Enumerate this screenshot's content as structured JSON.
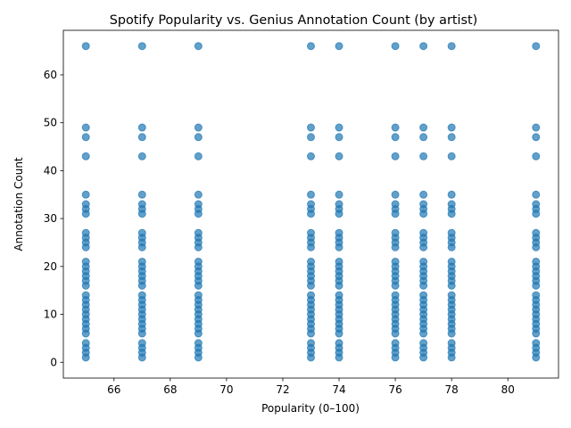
{
  "chart_data": {
    "type": "scatter",
    "title": "Spotify Popularity vs. Genius Annotation Count (by artist)",
    "xlabel": "Popularity (0–100)",
    "ylabel": "Annotation Count",
    "xlim": [
      64.2,
      81.8
    ],
    "ylim": [
      -3.3,
      69.3
    ],
    "xticks": [
      66,
      68,
      70,
      72,
      74,
      76,
      78,
      80
    ],
    "yticks": [
      0,
      10,
      20,
      30,
      40,
      50,
      60
    ],
    "grid": false,
    "legend": "none",
    "marker_color": "#1f77b4",
    "marker_alpha": 0.7,
    "series": [
      {
        "x": 65,
        "y": [
          1,
          2,
          3,
          4,
          6,
          7,
          8,
          9,
          10,
          11,
          12,
          13,
          14,
          16,
          17,
          18,
          19,
          20,
          21,
          24,
          25,
          26,
          27,
          31,
          32,
          33,
          35,
          43,
          47,
          49,
          66
        ]
      },
      {
        "x": 67,
        "y": [
          1,
          2,
          3,
          4,
          6,
          7,
          8,
          9,
          10,
          11,
          12,
          13,
          14,
          16,
          17,
          18,
          19,
          20,
          21,
          24,
          25,
          26,
          27,
          31,
          32,
          33,
          35,
          43,
          47,
          49,
          66
        ]
      },
      {
        "x": 69,
        "y": [
          1,
          2,
          3,
          4,
          6,
          7,
          8,
          9,
          10,
          11,
          12,
          13,
          14,
          16,
          17,
          18,
          19,
          20,
          21,
          24,
          25,
          26,
          27,
          31,
          32,
          33,
          35,
          43,
          47,
          49,
          66
        ]
      },
      {
        "x": 73,
        "y": [
          1,
          2,
          3,
          4,
          6,
          7,
          8,
          9,
          10,
          11,
          12,
          13,
          14,
          16,
          17,
          18,
          19,
          20,
          21,
          24,
          25,
          26,
          27,
          31,
          32,
          33,
          35,
          43,
          47,
          49,
          66
        ]
      },
      {
        "x": 74,
        "y": [
          1,
          2,
          3,
          4,
          6,
          7,
          8,
          9,
          10,
          11,
          12,
          13,
          14,
          16,
          17,
          18,
          19,
          20,
          21,
          24,
          25,
          26,
          27,
          31,
          32,
          33,
          35,
          43,
          47,
          49,
          66
        ]
      },
      {
        "x": 76,
        "y": [
          1,
          2,
          3,
          4,
          6,
          7,
          8,
          9,
          10,
          11,
          12,
          13,
          14,
          16,
          17,
          18,
          19,
          20,
          21,
          24,
          25,
          26,
          27,
          31,
          32,
          33,
          35,
          43,
          47,
          49,
          66
        ]
      },
      {
        "x": 77,
        "y": [
          1,
          2,
          3,
          4,
          6,
          7,
          8,
          9,
          10,
          11,
          12,
          13,
          14,
          16,
          17,
          18,
          19,
          20,
          21,
          24,
          25,
          26,
          27,
          31,
          32,
          33,
          35,
          43,
          47,
          49,
          66
        ]
      },
      {
        "x": 78,
        "y": [
          1,
          2,
          3,
          4,
          6,
          7,
          8,
          9,
          10,
          11,
          12,
          13,
          14,
          16,
          17,
          18,
          19,
          20,
          21,
          24,
          25,
          26,
          27,
          31,
          32,
          33,
          35,
          43,
          47,
          49,
          66
        ]
      },
      {
        "x": 81,
        "y": [
          1,
          2,
          3,
          4,
          6,
          7,
          8,
          9,
          10,
          11,
          12,
          13,
          14,
          16,
          17,
          18,
          19,
          20,
          21,
          24,
          25,
          26,
          27,
          31,
          32,
          33,
          35,
          43,
          47,
          49,
          66
        ]
      }
    ]
  }
}
